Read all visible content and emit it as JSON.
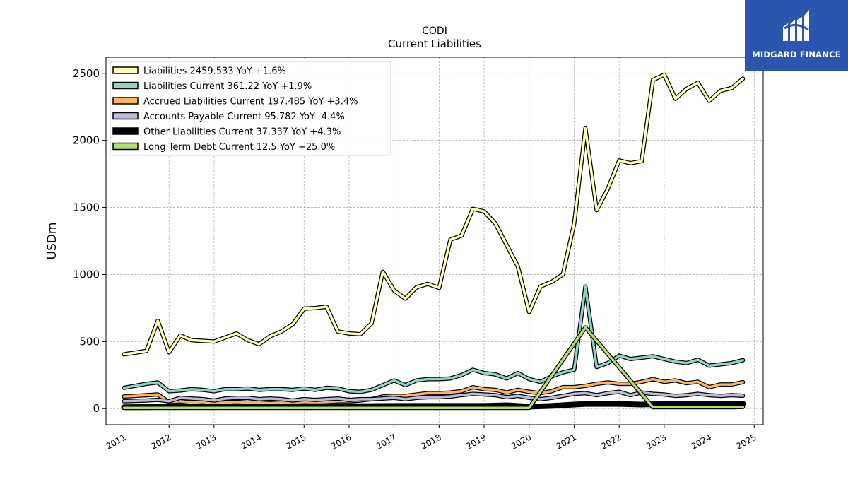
{
  "chart_data": {
    "type": "line",
    "title": "CODI",
    "subtitle": "Current  Liabilities",
    "ylabel": "USDm",
    "xlabel": "",
    "xlim": [
      2010.6,
      2025.2
    ],
    "ylim": [
      -120,
      2620
    ],
    "yticks": [
      0,
      500,
      1000,
      1500,
      2000,
      2500
    ],
    "xticks": [
      "2011",
      "2012",
      "2013",
      "2014",
      "2015",
      "2016",
      "2017",
      "2018",
      "2019",
      "2020",
      "2021",
      "2022",
      "2023",
      "2024",
      "2025"
    ],
    "grid": true,
    "legend_position": "top-left",
    "series": [
      {
        "name": "Liabilities",
        "legend": "Liabilities  2459.533 YoY +1.6%",
        "color": "#ffffb3",
        "x": [
          2011.0,
          2011.5,
          2011.75,
          2012.0,
          2012.25,
          2012.5,
          2012.75,
          2013.0,
          2013.25,
          2013.5,
          2013.75,
          2014.0,
          2014.25,
          2014.5,
          2014.75,
          2015.0,
          2015.25,
          2015.5,
          2015.75,
          2016.0,
          2016.25,
          2016.5,
          2016.75,
          2017.0,
          2017.25,
          2017.5,
          2017.75,
          2018.0,
          2018.25,
          2018.5,
          2018.75,
          2019.0,
          2019.25,
          2019.5,
          2019.75,
          2020.0,
          2020.25,
          2020.5,
          2020.75,
          2021.0,
          2021.25,
          2021.5,
          2021.75,
          2022.0,
          2022.25,
          2022.5,
          2022.75,
          2023.0,
          2023.25,
          2023.5,
          2023.75,
          2024.0,
          2024.25,
          2024.5,
          2024.75
        ],
        "values": [
          405,
          430,
          655,
          420,
          545,
          510,
          505,
          500,
          530,
          560,
          510,
          480,
          540,
          575,
          630,
          745,
          750,
          760,
          575,
          560,
          555,
          635,
          1020,
          880,
          820,
          905,
          930,
          900,
          1260,
          1290,
          1490,
          1470,
          1380,
          1220,
          1060,
          720,
          910,
          945,
          1000,
          1380,
          2090,
          1480,
          1640,
          1850,
          1830,
          1845,
          2450,
          2490,
          2310,
          2385,
          2430,
          2295,
          2370,
          2390,
          2460
        ]
      },
      {
        "name": "Liabilities Current",
        "legend": "Liabilities Current  361.22 YoY +1.9%",
        "color": "#8dd3c7",
        "x": [
          2011.0,
          2011.5,
          2011.75,
          2012.0,
          2012.25,
          2012.5,
          2012.75,
          2013.0,
          2013.25,
          2013.5,
          2013.75,
          2014.0,
          2014.25,
          2014.5,
          2014.75,
          2015.0,
          2015.25,
          2015.5,
          2015.75,
          2016.0,
          2016.25,
          2016.5,
          2016.75,
          2017.0,
          2017.25,
          2017.5,
          2017.75,
          2018.0,
          2018.25,
          2018.5,
          2018.75,
          2019.0,
          2019.25,
          2019.5,
          2019.75,
          2020.0,
          2020.25,
          2020.5,
          2020.75,
          2021.0,
          2021.25,
          2021.5,
          2021.75,
          2022.0,
          2022.25,
          2022.5,
          2022.75,
          2023.0,
          2023.25,
          2023.5,
          2023.75,
          2024.0,
          2024.25,
          2024.5,
          2024.75
        ],
        "values": [
          155,
          185,
          195,
          130,
          135,
          145,
          140,
          130,
          145,
          145,
          150,
          140,
          145,
          145,
          140,
          150,
          140,
          155,
          150,
          130,
          125,
          140,
          175,
          210,
          175,
          210,
          220,
          220,
          225,
          250,
          290,
          265,
          255,
          225,
          265,
          220,
          200,
          240,
          270,
          290,
          910,
          310,
          340,
          395,
          370,
          380,
          390,
          370,
          350,
          340,
          365,
          320,
          330,
          340,
          361
        ]
      },
      {
        "name": "Accrued Liabilities Current",
        "legend": "Accrued Liabilities Current  197.485 YoY +3.4%",
        "color": "#fdb462",
        "x": [
          2011.0,
          2011.5,
          2011.75,
          2012.0,
          2012.25,
          2012.5,
          2012.75,
          2013.0,
          2013.25,
          2013.5,
          2013.75,
          2014.0,
          2014.25,
          2014.5,
          2014.75,
          2015.0,
          2015.25,
          2015.5,
          2015.75,
          2016.0,
          2016.25,
          2016.5,
          2016.75,
          2017.0,
          2017.25,
          2017.5,
          2017.75,
          2018.0,
          2018.25,
          2018.5,
          2018.75,
          2019.0,
          2019.25,
          2019.5,
          2019.75,
          2020.0,
          2020.25,
          2020.5,
          2020.75,
          2021.0,
          2021.25,
          2021.5,
          2021.75,
          2022.0,
          2022.25,
          2022.5,
          2022.75,
          2023.0,
          2023.25,
          2023.5,
          2023.75,
          2024.0,
          2024.25,
          2024.5,
          2024.75
        ],
        "values": [
          90,
          100,
          105,
          50,
          55,
          45,
          50,
          40,
          45,
          50,
          45,
          45,
          40,
          45,
          40,
          50,
          45,
          50,
          55,
          55,
          60,
          70,
          90,
          95,
          95,
          105,
          115,
          115,
          120,
          130,
          160,
          145,
          140,
          120,
          140,
          125,
          115,
          130,
          160,
          160,
          170,
          185,
          195,
          185,
          185,
          200,
          220,
          200,
          210,
          190,
          200,
          160,
          180,
          180,
          197
        ]
      },
      {
        "name": "Accounts Payable Current",
        "legend": "Accounts Payable Current  95.782 YoY -4.4%",
        "color": "#bebada",
        "x": [
          2011.0,
          2011.5,
          2011.75,
          2012.0,
          2012.25,
          2012.5,
          2012.75,
          2013.0,
          2013.25,
          2013.5,
          2013.75,
          2014.0,
          2014.25,
          2014.5,
          2014.75,
          2015.0,
          2015.25,
          2015.5,
          2015.75,
          2016.0,
          2016.25,
          2016.5,
          2016.75,
          2017.0,
          2017.25,
          2017.5,
          2017.75,
          2018.0,
          2018.25,
          2018.5,
          2018.75,
          2019.0,
          2019.25,
          2019.5,
          2019.75,
          2020.0,
          2020.25,
          2020.5,
          2020.75,
          2021.0,
          2021.25,
          2021.5,
          2021.75,
          2022.0,
          2022.25,
          2022.5,
          2022.75,
          2023.0,
          2023.25,
          2023.5,
          2023.75,
          2024.0,
          2024.25,
          2024.5,
          2024.75
        ],
        "values": [
          55,
          60,
          65,
          55,
          80,
          75,
          70,
          60,
          75,
          80,
          80,
          70,
          75,
          70,
          60,
          70,
          65,
          70,
          75,
          65,
          70,
          70,
          75,
          80,
          70,
          80,
          85,
          85,
          90,
          100,
          110,
          105,
          100,
          85,
          95,
          80,
          70,
          80,
          95,
          110,
          115,
          100,
          115,
          125,
          100,
          120,
          110,
          105,
          95,
          100,
          110,
          100,
          95,
          100,
          96
        ]
      },
      {
        "name": "Other Liabilities Current",
        "legend": "Other Liabilities Current  37.337 YoY +4.3%",
        "color": "#000000",
        "x": [
          2011.0,
          2012.0,
          2013.0,
          2014.0,
          2015.0,
          2016.0,
          2017.0,
          2018.0,
          2019.0,
          2019.5,
          2020.0,
          2020.5,
          2021.0,
          2021.25,
          2021.5,
          2022.0,
          2022.5,
          2023.0,
          2023.5,
          2024.0,
          2024.5,
          2024.75
        ],
        "values": [
          10,
          12,
          15,
          15,
          18,
          18,
          20,
          20,
          20,
          25,
          15,
          20,
          30,
          35,
          35,
          35,
          30,
          35,
          35,
          35,
          37,
          37
        ]
      },
      {
        "name": "Long Term Debt Current",
        "legend": "Long Term Debt Current  12.5 YoY +25.0%",
        "color": "#b3de69",
        "x": [
          2011.0,
          2012.0,
          2013.0,
          2014.0,
          2015.0,
          2016.0,
          2017.0,
          2018.0,
          2019.0,
          2020.0,
          2021.25,
          2022.75,
          2023.0,
          2023.5,
          2024.0,
          2024.5,
          2024.75
        ],
        "values": [
          5,
          5,
          5,
          5,
          5,
          5,
          5,
          5,
          5,
          5,
          605,
          10,
          10,
          10,
          10,
          10,
          12.5
        ]
      }
    ]
  },
  "logo": {
    "text": "MIDGARD FINANCE",
    "color": "#2a56b0"
  }
}
